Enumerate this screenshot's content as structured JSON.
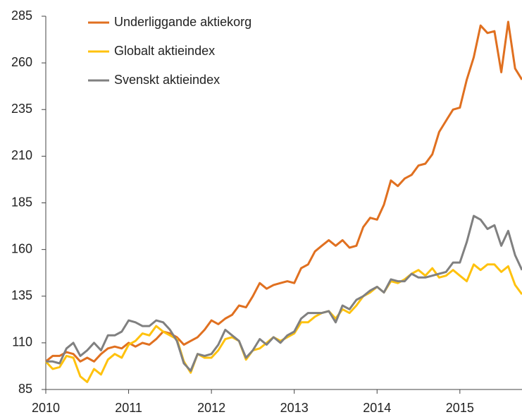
{
  "chart_data": {
    "type": "line",
    "x": [
      2010,
      2010.083,
      2010.167,
      2010.25,
      2010.333,
      2010.417,
      2010.5,
      2010.583,
      2010.667,
      2010.75,
      2010.833,
      2010.917,
      2011,
      2011.083,
      2011.167,
      2011.25,
      2011.333,
      2011.417,
      2011.5,
      2011.583,
      2011.667,
      2011.75,
      2011.833,
      2011.917,
      2012,
      2012.083,
      2012.167,
      2012.25,
      2012.333,
      2012.417,
      2012.5,
      2012.583,
      2012.667,
      2012.75,
      2012.833,
      2012.917,
      2013,
      2013.083,
      2013.167,
      2013.25,
      2013.333,
      2013.417,
      2013.5,
      2013.583,
      2013.667,
      2013.75,
      2013.833,
      2013.917,
      2014,
      2014.083,
      2014.167,
      2014.25,
      2014.333,
      2014.417,
      2014.5,
      2014.583,
      2014.667,
      2014.75,
      2014.833,
      2014.917,
      2015,
      2015.083,
      2015.167,
      2015.25,
      2015.333,
      2015.417,
      2015.5,
      2015.583,
      2015.667,
      2015.75
    ],
    "series": [
      {
        "name": "Underliggande aktiekorg",
        "color": "#e07020",
        "values": [
          100,
          103,
          103,
          105,
          104,
          100,
          102,
          100,
          104,
          107,
          108,
          107,
          110,
          108,
          110,
          109,
          112,
          116,
          115,
          113,
          109,
          111,
          113,
          117,
          122,
          120,
          123,
          125,
          130,
          129,
          135,
          142,
          139,
          141,
          142,
          143,
          142,
          150,
          152,
          159,
          162,
          165,
          162,
          165,
          161,
          162,
          172,
          177,
          176,
          184,
          197,
          194,
          198,
          200,
          205,
          206,
          211,
          223,
          229,
          235,
          236,
          251,
          263,
          280,
          276,
          277,
          255,
          282,
          257,
          251
        ]
      },
      {
        "name": "Globalt aktieindex",
        "color": "#ffc20e",
        "values": [
          100,
          96,
          97,
          103,
          102,
          92,
          89,
          96,
          93,
          101,
          104,
          102,
          109,
          111,
          115,
          114,
          119,
          116,
          114,
          112,
          100,
          94,
          104,
          102,
          102,
          106,
          112,
          113,
          111,
          101,
          106,
          107,
          110,
          113,
          111,
          113,
          115,
          121,
          121,
          124,
          126,
          127,
          123,
          128,
          126,
          130,
          135,
          137,
          140,
          137,
          143,
          142,
          144,
          147,
          149,
          146,
          150,
          145,
          146,
          149,
          146,
          143,
          152,
          149,
          152,
          152,
          148,
          151,
          141,
          136
        ]
      },
      {
        "name": "Svenskt aktieindex",
        "color": "#808080",
        "values": [
          100,
          100,
          99,
          107,
          110,
          103,
          106,
          110,
          106,
          114,
          114,
          116,
          122,
          121,
          119,
          119,
          122,
          121,
          117,
          111,
          99,
          95,
          104,
          103,
          104,
          109,
          117,
          114,
          111,
          102,
          106,
          112,
          109,
          113,
          110,
          114,
          116,
          123,
          126,
          126,
          126,
          127,
          121,
          130,
          128,
          133,
          135,
          138,
          140,
          137,
          144,
          143,
          143,
          147,
          145,
          145,
          146,
          147,
          148,
          153,
          153,
          164,
          178,
          176,
          171,
          173,
          162,
          170,
          157,
          149
        ]
      }
    ],
    "xlim": [
      2010,
      2015.75
    ],
    "xticks": [
      2010,
      2011,
      2012,
      2013,
      2014,
      2015
    ],
    "ylim": [
      85,
      285
    ],
    "yticks": [
      85,
      110,
      135,
      160,
      185,
      210,
      235,
      260,
      285
    ]
  }
}
